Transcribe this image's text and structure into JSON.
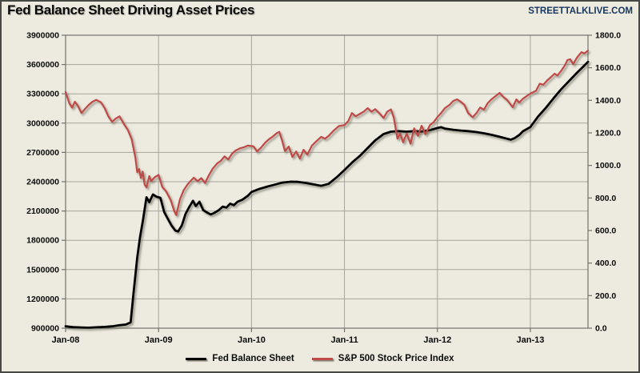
{
  "header": {
    "title": "Fed Balance Sheet Driving Asset Prices",
    "site": "STREETTALKLIVE.COM"
  },
  "colors": {
    "background": "#edebe0",
    "frame_border": "#474743",
    "grid": "#a7a49b",
    "plot_border": "#73716b",
    "axis_text": "#0a0a0a",
    "site_text": "#17365d",
    "fed_line": "#000000",
    "sp500_line": "#bf4a47"
  },
  "legend": [
    {
      "label": "Fed Balance Sheet",
      "color": "#000000"
    },
    {
      "label": "S&P 500 Stock Price Index",
      "color": "#bf4a47"
    }
  ],
  "chart_data": {
    "type": "line",
    "title": "Fed Balance Sheet Driving Asset Prices",
    "grid": true,
    "legend_position": "bottom",
    "x_range": [
      2008.0,
      2013.62
    ],
    "x_axis": {
      "ticks": [
        {
          "value": 2008,
          "label": "Jan-08"
        },
        {
          "value": 2009,
          "label": "Jan-09"
        },
        {
          "value": 2010,
          "label": "Jan-10"
        },
        {
          "value": 2011,
          "label": "Jan-11"
        },
        {
          "value": 2012,
          "label": "Jan-12"
        },
        {
          "value": 2013,
          "label": "Jan-13"
        }
      ]
    },
    "left_axis": {
      "series": "Fed Balance Sheet",
      "min": 900000,
      "max": 3900000,
      "step": 300000,
      "ticks": [
        {
          "value": 900000,
          "label": "900000"
        },
        {
          "value": 1200000,
          "label": "1200000"
        },
        {
          "value": 1500000,
          "label": "1500000"
        },
        {
          "value": 1800000,
          "label": "1800000"
        },
        {
          "value": 2100000,
          "label": "2100000"
        },
        {
          "value": 2400000,
          "label": "2400000"
        },
        {
          "value": 2700000,
          "label": "2700000"
        },
        {
          "value": 3000000,
          "label": "3000000"
        },
        {
          "value": 3300000,
          "label": "3300000"
        },
        {
          "value": 3600000,
          "label": "3600000"
        },
        {
          "value": 3900000,
          "label": "3900000"
        }
      ]
    },
    "right_axis": {
      "series": "S&P 500 Stock Price Index",
      "min": 0,
      "max": 1800,
      "step": 200,
      "ticks": [
        {
          "value": 0,
          "label": "0.0"
        },
        {
          "value": 200,
          "label": "200.0"
        },
        {
          "value": 400,
          "label": "400.0"
        },
        {
          "value": 600,
          "label": "600.0"
        },
        {
          "value": 800,
          "label": "800.0"
        },
        {
          "value": 1000,
          "label": "1000.0"
        },
        {
          "value": 1200,
          "label": "1200.0"
        },
        {
          "value": 1400,
          "label": "1400.0"
        },
        {
          "value": 1600,
          "label": "1600.0"
        },
        {
          "value": 1800,
          "label": "1800.0"
        }
      ]
    },
    "series": [
      {
        "name": "Fed Balance Sheet",
        "axis": "left",
        "color": "#000000",
        "width": 2.8,
        "points": [
          [
            2008.0,
            920000
          ],
          [
            2008.08,
            911000
          ],
          [
            2008.17,
            907000
          ],
          [
            2008.25,
            905000
          ],
          [
            2008.33,
            909000
          ],
          [
            2008.42,
            913000
          ],
          [
            2008.5,
            919000
          ],
          [
            2008.58,
            930000
          ],
          [
            2008.65,
            938000
          ],
          [
            2008.7,
            960000
          ],
          [
            2008.73,
            1250000
          ],
          [
            2008.77,
            1620000
          ],
          [
            2008.8,
            1830000
          ],
          [
            2008.83,
            1990000
          ],
          [
            2008.87,
            2240000
          ],
          [
            2008.9,
            2190000
          ],
          [
            2008.94,
            2270000
          ],
          [
            2008.98,
            2245000
          ],
          [
            2009.02,
            2235000
          ],
          [
            2009.06,
            2090000
          ],
          [
            2009.1,
            2020000
          ],
          [
            2009.14,
            1950000
          ],
          [
            2009.18,
            1900000
          ],
          [
            2009.21,
            1890000
          ],
          [
            2009.25,
            1950000
          ],
          [
            2009.29,
            2070000
          ],
          [
            2009.33,
            2140000
          ],
          [
            2009.37,
            2205000
          ],
          [
            2009.4,
            2150000
          ],
          [
            2009.44,
            2195000
          ],
          [
            2009.48,
            2110000
          ],
          [
            2009.52,
            2085000
          ],
          [
            2009.56,
            2065000
          ],
          [
            2009.6,
            2080000
          ],
          [
            2009.65,
            2110000
          ],
          [
            2009.69,
            2145000
          ],
          [
            2009.73,
            2135000
          ],
          [
            2009.77,
            2175000
          ],
          [
            2009.81,
            2160000
          ],
          [
            2009.85,
            2195000
          ],
          [
            2009.9,
            2215000
          ],
          [
            2009.96,
            2255000
          ],
          [
            2010.0,
            2295000
          ],
          [
            2010.08,
            2325000
          ],
          [
            2010.17,
            2350000
          ],
          [
            2010.25,
            2370000
          ],
          [
            2010.33,
            2390000
          ],
          [
            2010.42,
            2400000
          ],
          [
            2010.5,
            2398000
          ],
          [
            2010.58,
            2388000
          ],
          [
            2010.67,
            2372000
          ],
          [
            2010.75,
            2358000
          ],
          [
            2010.83,
            2378000
          ],
          [
            2010.92,
            2448000
          ],
          [
            2011.0,
            2520000
          ],
          [
            2011.08,
            2595000
          ],
          [
            2011.17,
            2668000
          ],
          [
            2011.25,
            2745000
          ],
          [
            2011.33,
            2822000
          ],
          [
            2011.42,
            2888000
          ],
          [
            2011.5,
            2912000
          ],
          [
            2011.58,
            2918000
          ],
          [
            2011.67,
            2912000
          ],
          [
            2011.75,
            2918000
          ],
          [
            2011.83,
            2914000
          ],
          [
            2011.92,
            2928000
          ],
          [
            2012.0,
            2950000
          ],
          [
            2012.04,
            2958000
          ],
          [
            2012.08,
            2944000
          ],
          [
            2012.17,
            2932000
          ],
          [
            2012.25,
            2924000
          ],
          [
            2012.33,
            2918000
          ],
          [
            2012.42,
            2908000
          ],
          [
            2012.5,
            2896000
          ],
          [
            2012.58,
            2880000
          ],
          [
            2012.67,
            2860000
          ],
          [
            2012.75,
            2840000
          ],
          [
            2012.79,
            2830000
          ],
          [
            2012.83,
            2846000
          ],
          [
            2012.88,
            2878000
          ],
          [
            2012.92,
            2916000
          ],
          [
            2013.0,
            2960000
          ],
          [
            2013.08,
            3065000
          ],
          [
            2013.17,
            3160000
          ],
          [
            2013.25,
            3255000
          ],
          [
            2013.33,
            3345000
          ],
          [
            2013.42,
            3435000
          ],
          [
            2013.5,
            3515000
          ],
          [
            2013.56,
            3570000
          ],
          [
            2013.62,
            3628000
          ]
        ]
      },
      {
        "name": "S&P 500 Stock Price Index",
        "axis": "right",
        "color": "#bf4a47",
        "width": 2.2,
        "points": [
          [
            2008.0,
            1452
          ],
          [
            2008.04,
            1382
          ],
          [
            2008.07,
            1355
          ],
          [
            2008.1,
            1392
          ],
          [
            2008.13,
            1368
          ],
          [
            2008.17,
            1322
          ],
          [
            2008.21,
            1348
          ],
          [
            2008.25,
            1372
          ],
          [
            2008.29,
            1392
          ],
          [
            2008.33,
            1403
          ],
          [
            2008.38,
            1388
          ],
          [
            2008.42,
            1352
          ],
          [
            2008.46,
            1302
          ],
          [
            2008.5,
            1268
          ],
          [
            2008.54,
            1288
          ],
          [
            2008.58,
            1302
          ],
          [
            2008.63,
            1252
          ],
          [
            2008.67,
            1218
          ],
          [
            2008.71,
            1162
          ],
          [
            2008.75,
            1052
          ],
          [
            2008.77,
            958
          ],
          [
            2008.79,
            978
          ],
          [
            2008.81,
            922
          ],
          [
            2008.83,
            962
          ],
          [
            2008.85,
            882
          ],
          [
            2008.87,
            865
          ],
          [
            2008.9,
            935
          ],
          [
            2008.92,
            903
          ],
          [
            2008.96,
            928
          ],
          [
            2009.0,
            942
          ],
          [
            2009.04,
            868
          ],
          [
            2009.08,
            842
          ],
          [
            2009.13,
            788
          ],
          [
            2009.17,
            718
          ],
          [
            2009.19,
            695
          ],
          [
            2009.23,
            792
          ],
          [
            2009.27,
            848
          ],
          [
            2009.31,
            882
          ],
          [
            2009.35,
            908
          ],
          [
            2009.38,
            925
          ],
          [
            2009.42,
            903
          ],
          [
            2009.46,
            922
          ],
          [
            2009.5,
            892
          ],
          [
            2009.54,
            938
          ],
          [
            2009.58,
            978
          ],
          [
            2009.63,
            1012
          ],
          [
            2009.67,
            1028
          ],
          [
            2009.71,
            1056
          ],
          [
            2009.75,
            1036
          ],
          [
            2009.79,
            1072
          ],
          [
            2009.83,
            1092
          ],
          [
            2009.88,
            1106
          ],
          [
            2009.92,
            1112
          ],
          [
            2009.96,
            1122
          ],
          [
            2010.02,
            1118
          ],
          [
            2010.06,
            1086
          ],
          [
            2010.1,
            1108
          ],
          [
            2010.15,
            1142
          ],
          [
            2010.19,
            1162
          ],
          [
            2010.23,
            1178
          ],
          [
            2010.27,
            1198
          ],
          [
            2010.3,
            1206
          ],
          [
            2010.33,
            1152
          ],
          [
            2010.36,
            1088
          ],
          [
            2010.4,
            1116
          ],
          [
            2010.44,
            1052
          ],
          [
            2010.48,
            1086
          ],
          [
            2010.52,
            1042
          ],
          [
            2010.56,
            1096
          ],
          [
            2010.6,
            1066
          ],
          [
            2010.65,
            1122
          ],
          [
            2010.7,
            1150
          ],
          [
            2010.75,
            1176
          ],
          [
            2010.79,
            1164
          ],
          [
            2010.83,
            1182
          ],
          [
            2010.88,
            1212
          ],
          [
            2010.94,
            1242
          ],
          [
            2011.0,
            1248
          ],
          [
            2011.04,
            1272
          ],
          [
            2011.08,
            1322
          ],
          [
            2011.12,
            1302
          ],
          [
            2011.17,
            1318
          ],
          [
            2011.21,
            1332
          ],
          [
            2011.25,
            1352
          ],
          [
            2011.29,
            1330
          ],
          [
            2011.33,
            1346
          ],
          [
            2011.38,
            1318
          ],
          [
            2011.42,
            1292
          ],
          [
            2011.46,
            1330
          ],
          [
            2011.5,
            1344
          ],
          [
            2011.53,
            1294
          ],
          [
            2011.57,
            1164
          ],
          [
            2011.6,
            1196
          ],
          [
            2011.63,
            1142
          ],
          [
            2011.67,
            1196
          ],
          [
            2011.71,
            1133
          ],
          [
            2011.75,
            1228
          ],
          [
            2011.79,
            1182
          ],
          [
            2011.83,
            1244
          ],
          [
            2011.87,
            1192
          ],
          [
            2011.92,
            1248
          ],
          [
            2011.96,
            1266
          ],
          [
            2012.0,
            1298
          ],
          [
            2012.04,
            1322
          ],
          [
            2012.08,
            1352
          ],
          [
            2012.13,
            1372
          ],
          [
            2012.17,
            1396
          ],
          [
            2012.21,
            1406
          ],
          [
            2012.25,
            1392
          ],
          [
            2012.29,
            1372
          ],
          [
            2012.33,
            1322
          ],
          [
            2012.38,
            1296
          ],
          [
            2012.42,
            1322
          ],
          [
            2012.46,
            1356
          ],
          [
            2012.5,
            1342
          ],
          [
            2012.54,
            1382
          ],
          [
            2012.58,
            1406
          ],
          [
            2012.63,
            1428
          ],
          [
            2012.67,
            1446
          ],
          [
            2012.71,
            1420
          ],
          [
            2012.75,
            1402
          ],
          [
            2012.79,
            1372
          ],
          [
            2012.81,
            1358
          ],
          [
            2012.85,
            1406
          ],
          [
            2012.88,
            1386
          ],
          [
            2012.92,
            1410
          ],
          [
            2012.96,
            1426
          ],
          [
            2013.0,
            1442
          ],
          [
            2013.06,
            1458
          ],
          [
            2013.1,
            1502
          ],
          [
            2013.14,
            1496
          ],
          [
            2013.18,
            1522
          ],
          [
            2013.22,
            1542
          ],
          [
            2013.26,
            1564
          ],
          [
            2013.29,
            1552
          ],
          [
            2013.33,
            1580
          ],
          [
            2013.37,
            1614
          ],
          [
            2013.4,
            1648
          ],
          [
            2013.43,
            1652
          ],
          [
            2013.46,
            1622
          ],
          [
            2013.5,
            1662
          ],
          [
            2013.55,
            1696
          ],
          [
            2013.58,
            1688
          ],
          [
            2013.62,
            1705
          ]
        ]
      }
    ]
  }
}
